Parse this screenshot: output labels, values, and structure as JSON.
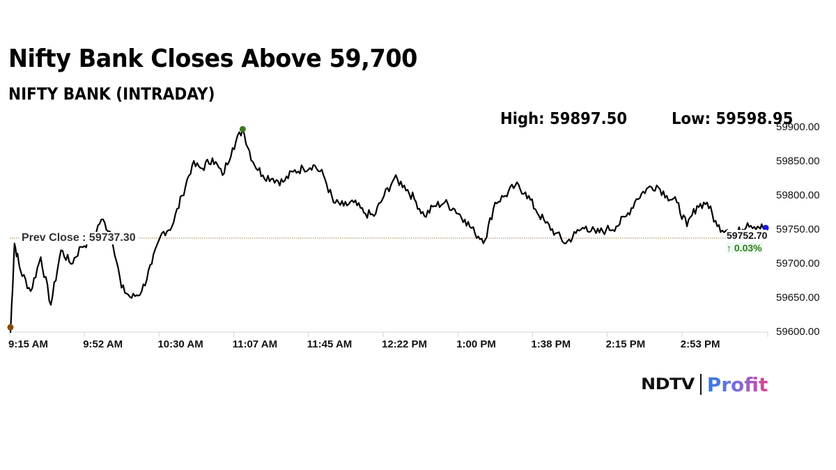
{
  "header": {
    "title": "Nifty Bank Closes Above 59,700",
    "subtitle": "NIFTY BANK (INTRADAY)",
    "high_label": "High: 59897.50",
    "low_label": "Low: 59598.95"
  },
  "annotations": {
    "prev_close_label": "Prev Close : 59737.30",
    "last_price": "59752.70",
    "change": "↑ 0.03%"
  },
  "logo": {
    "brand": "NDTV",
    "product": "Profit"
  },
  "colors": {
    "line": "#000000",
    "prev_close_line": "#a0784a",
    "high_marker": "#3a7a1a",
    "low_marker": "#8b4a10",
    "last_marker": "#1a1adf",
    "change_text": "#2e7d1a",
    "axis": "#d0d0d0"
  },
  "chart_data": {
    "type": "line",
    "title": "NIFTY BANK (INTRADAY)",
    "xlabel": "",
    "ylabel": "",
    "ylim": [
      59600,
      59900
    ],
    "grid": false,
    "legend": "none",
    "y_ticks": [
      "59900.00",
      "59850.00",
      "59800.00",
      "59750.00",
      "59700.00",
      "59650.00",
      "59600.00"
    ],
    "x_ticks": [
      "9:15 AM",
      "9:52 AM",
      "10:30 AM",
      "11:07 AM",
      "11:45 AM",
      "12:22 PM",
      "1:00 PM",
      "1:38 PM",
      "2:15 PM",
      "2:53 PM"
    ],
    "high": 59897.5,
    "low": 59598.95,
    "prev_close": 59737.3,
    "last": 59752.7,
    "change_pct": 0.03,
    "x": [
      "9:15",
      "9:17",
      "9:20",
      "9:25",
      "9:30",
      "9:35",
      "9:40",
      "9:45",
      "9:50",
      "9:55",
      "10:00",
      "10:05",
      "10:10",
      "10:15",
      "10:20",
      "10:25",
      "10:30",
      "10:35",
      "10:40",
      "10:45",
      "10:50",
      "10:55",
      "11:00",
      "11:05",
      "11:10",
      "11:15",
      "11:20",
      "11:25",
      "11:30",
      "11:35",
      "11:40",
      "11:45",
      "11:50",
      "11:55",
      "12:00",
      "12:05",
      "12:10",
      "12:15",
      "12:20",
      "12:25",
      "12:30",
      "12:35",
      "12:40",
      "12:45",
      "12:50",
      "12:55",
      "13:00",
      "13:05",
      "13:10",
      "13:15",
      "13:20",
      "13:25",
      "13:30",
      "13:35",
      "13:40",
      "13:45",
      "13:50",
      "13:55",
      "14:00",
      "14:05",
      "14:10",
      "14:15",
      "14:20",
      "14:25",
      "14:30",
      "14:35",
      "14:40",
      "14:45",
      "14:50",
      "14:55",
      "15:00",
      "15:05",
      "15:10",
      "15:15",
      "15:20",
      "15:25",
      "15:29"
    ],
    "series": [
      {
        "name": "NIFTY BANK",
        "values": [
          59598.95,
          59730,
          59690,
          59660,
          59710,
          59640,
          59720,
          59700,
          59725,
          59735,
          59765,
          59745,
          59665,
          59650,
          59660,
          59700,
          59745,
          59755,
          59800,
          59845,
          59840,
          59855,
          59830,
          59870,
          59897.5,
          59850,
          59830,
          59825,
          59820,
          59835,
          59840,
          59845,
          59830,
          59790,
          59785,
          59790,
          59775,
          59770,
          59800,
          59825,
          59815,
          59795,
          59770,
          59785,
          59790,
          59780,
          59765,
          59745,
          59735,
          59790,
          59800,
          59815,
          59805,
          59780,
          59760,
          59745,
          59730,
          59745,
          59755,
          59745,
          59750,
          59755,
          59770,
          59795,
          59810,
          59815,
          59800,
          59790,
          59755,
          59785,
          59790,
          59755,
          59750,
          59745,
          59760,
          59755,
          59752.7
        ]
      }
    ]
  }
}
